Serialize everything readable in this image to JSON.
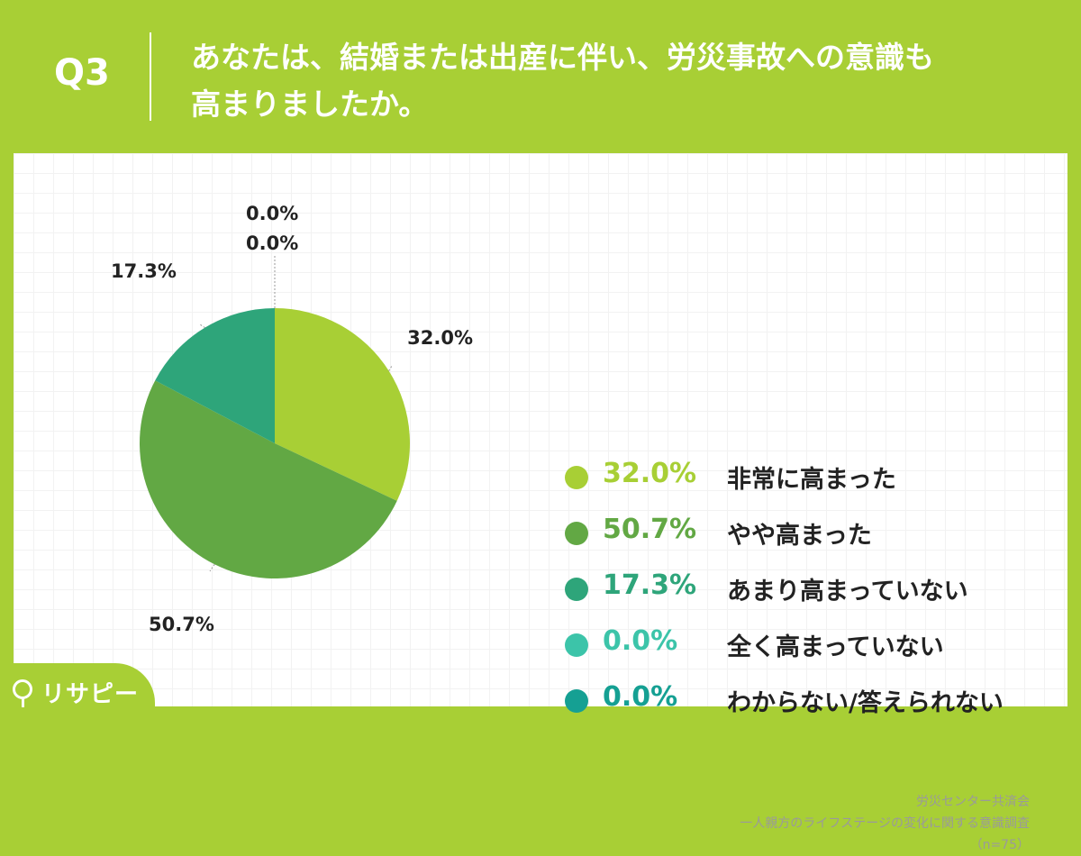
{
  "header": {
    "question_number": "Q3",
    "question_line1": "あなたは、結婚または出産に伴い、労災事故への意識も",
    "question_line2": "高まりましたか。"
  },
  "chart_data": {
    "type": "pie",
    "categories": [
      "非常に高まった",
      "やや高まった",
      "あまり高まっていない",
      "全く高まっていない",
      "わからない/答えられない"
    ],
    "values": [
      32.0,
      50.7,
      17.3,
      0.0,
      0.0
    ],
    "value_labels": [
      "32.0%",
      "50.7%",
      "17.3%",
      "0.0%",
      "0.0%"
    ],
    "colors": [
      "#a8cf35",
      "#62a844",
      "#2ea57a",
      "#3cc4a9",
      "#15a093"
    ],
    "legend_placement": "right"
  },
  "source": {
    "line1": "労災センター共済会",
    "line2": "一人親方のライフステージの変化に関する意識調査",
    "line3": "（n=75）"
  },
  "logo": {
    "text": "リサピー"
  }
}
